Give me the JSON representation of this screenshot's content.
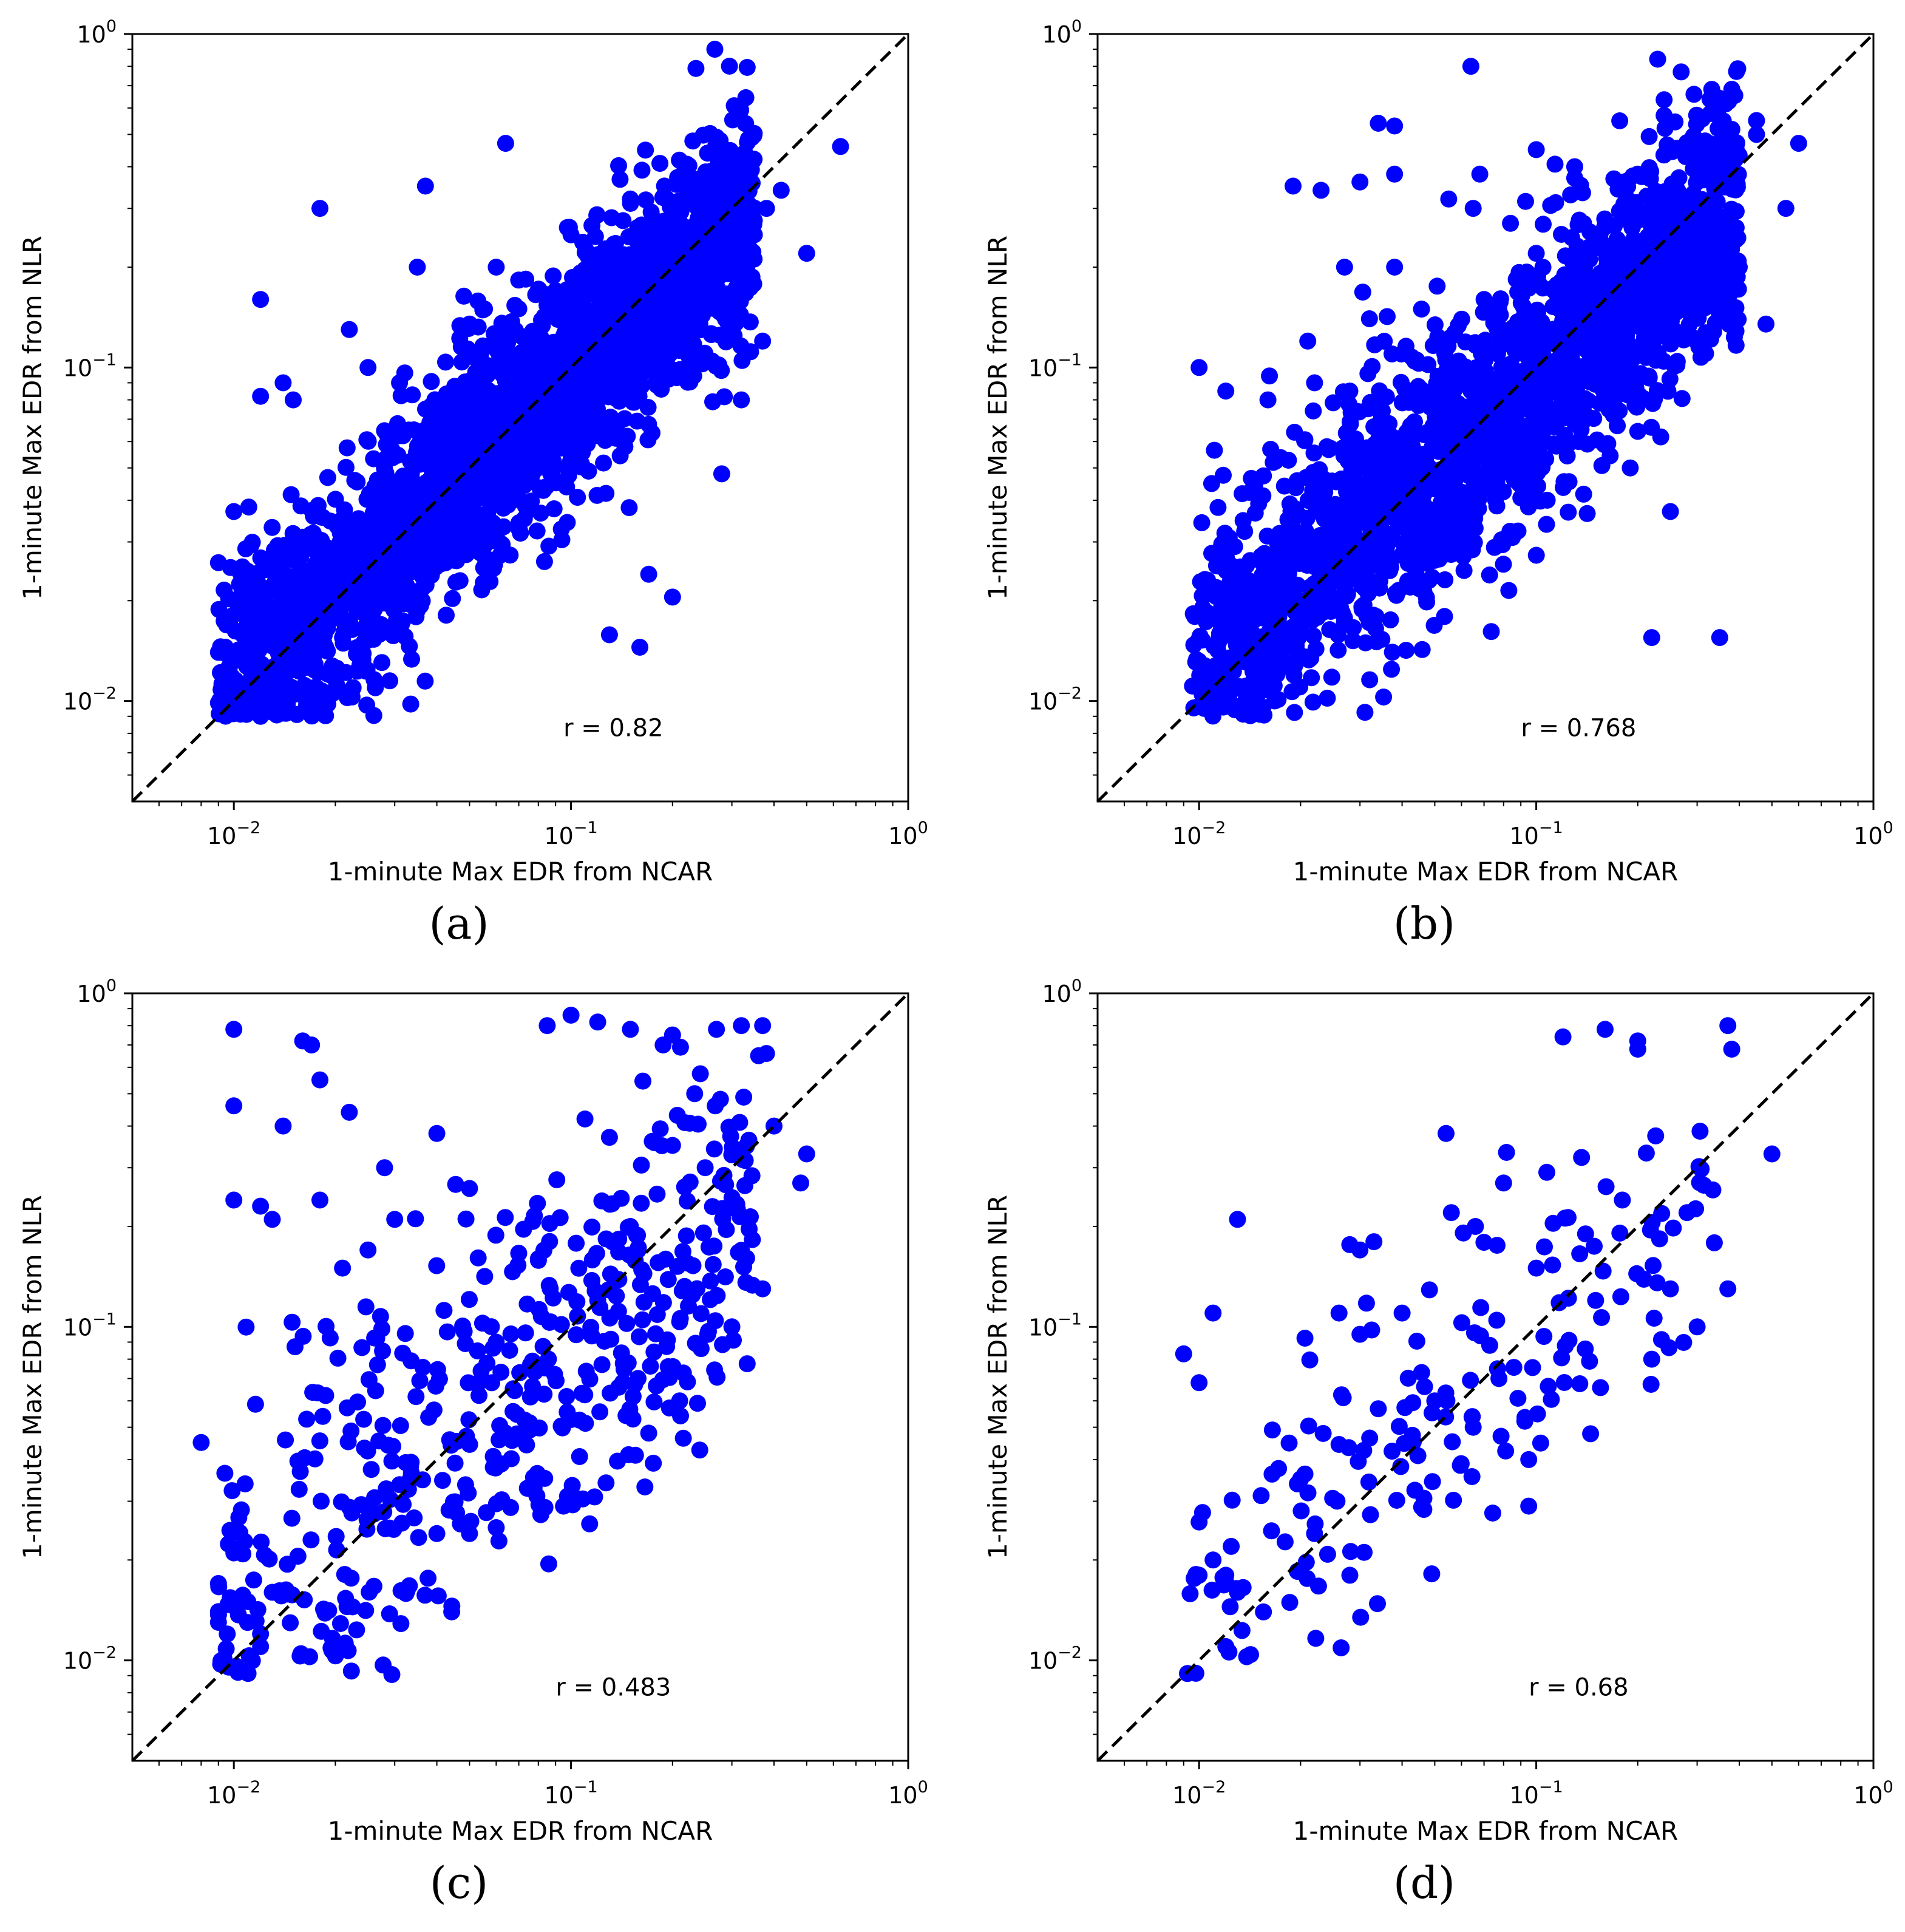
{
  "figure": {
    "colors": {
      "points": "#0000ff",
      "axes": "#000000",
      "diagonal": "#000000",
      "background": "#ffffff"
    }
  },
  "chart_data": [
    {
      "id": "a",
      "type": "scatter",
      "panel_label": "(a)",
      "xlabel": "1-minute Max EDR from NCAR",
      "ylabel": "1-minute Max EDR from NLR",
      "xscale": "log",
      "yscale": "log",
      "xlim": [
        0.005,
        1
      ],
      "ylim": [
        0.005,
        1
      ],
      "xticks": [
        {
          "value": 0.01,
          "base": "10",
          "exp": "−2"
        },
        {
          "value": 0.1,
          "base": "10",
          "exp": "−1"
        },
        {
          "value": 1,
          "base": "10",
          "exp": "0"
        }
      ],
      "yticks": [
        {
          "value": 0.01,
          "base": "10",
          "exp": "−2"
        },
        {
          "value": 0.1,
          "base": "10",
          "exp": "−1"
        },
        {
          "value": 1,
          "base": "10",
          "exp": "0"
        }
      ],
      "reference_line": "y = x (dashed)",
      "annotation": "r = 0.82",
      "cloud": {
        "n": 2600,
        "x_range": [
          0.009,
          0.35
        ],
        "scatter_sd": 0.17,
        "slope": 0.92
      },
      "points": [
        [
          0.064,
          0.47
        ],
        [
          0.63,
          0.46
        ],
        [
          0.018,
          0.3
        ],
        [
          0.037,
          0.35
        ],
        [
          0.012,
          0.16
        ],
        [
          0.035,
          0.2
        ],
        [
          0.06,
          0.2
        ],
        [
          0.5,
          0.22
        ],
        [
          0.42,
          0.34
        ],
        [
          0.38,
          0.3
        ],
        [
          0.3,
          0.42
        ],
        [
          0.22,
          0.32
        ],
        [
          0.014,
          0.09
        ],
        [
          0.012,
          0.082
        ],
        [
          0.015,
          0.08
        ],
        [
          0.01,
          0.037
        ],
        [
          0.009,
          0.026
        ],
        [
          0.009,
          0.014
        ],
        [
          0.011,
          0.011
        ],
        [
          0.012,
          0.009
        ],
        [
          0.014,
          0.0092
        ],
        [
          0.019,
          0.0098
        ],
        [
          0.021,
          0.0155
        ],
        [
          0.029,
          0.0115
        ],
        [
          0.13,
          0.0158
        ],
        [
          0.16,
          0.0145
        ],
        [
          0.2,
          0.0205
        ],
        [
          0.17,
          0.024
        ],
        [
          0.28,
          0.048
        ],
        [
          0.32,
          0.08
        ],
        [
          0.37,
          0.12
        ],
        [
          0.025,
          0.1
        ],
        [
          0.022,
          0.13
        ],
        [
          0.031,
          0.09
        ],
        [
          0.05,
          0.135
        ],
        [
          0.07,
          0.15
        ],
        [
          0.045,
          0.08
        ],
        [
          0.1,
          0.25
        ],
        [
          0.15,
          0.32
        ],
        [
          0.09,
          0.17
        ]
      ]
    },
    {
      "id": "b",
      "type": "scatter",
      "panel_label": "(b)",
      "xlabel": "1-minute Max EDR from NCAR",
      "ylabel": "1-minute Max EDR from NLR",
      "xscale": "log",
      "yscale": "log",
      "xlim": [
        0.005,
        1
      ],
      "ylim": [
        0.005,
        1
      ],
      "xticks": [
        {
          "value": 0.01,
          "base": "10",
          "exp": "−2"
        },
        {
          "value": 0.1,
          "base": "10",
          "exp": "−1"
        },
        {
          "value": 1,
          "base": "10",
          "exp": "0"
        }
      ],
      "yticks": [
        {
          "value": 0.01,
          "base": "10",
          "exp": "−2"
        },
        {
          "value": 0.1,
          "base": "10",
          "exp": "−1"
        },
        {
          "value": 1,
          "base": "10",
          "exp": "0"
        }
      ],
      "reference_line": "y = x (dashed)",
      "annotation": "r = 0.768",
      "cloud": {
        "n": 2200,
        "x_range": [
          0.0095,
          0.4
        ],
        "scatter_sd": 0.19,
        "slope": 0.85
      },
      "points": [
        [
          0.064,
          0.8
        ],
        [
          0.034,
          0.54
        ],
        [
          0.038,
          0.53
        ],
        [
          0.019,
          0.35
        ],
        [
          0.023,
          0.34
        ],
        [
          0.03,
          0.36
        ],
        [
          0.038,
          0.38
        ],
        [
          0.055,
          0.32
        ],
        [
          0.068,
          0.38
        ],
        [
          0.065,
          0.3
        ],
        [
          0.1,
          0.45
        ],
        [
          0.13,
          0.4
        ],
        [
          0.13,
          0.37
        ],
        [
          0.2,
          0.38
        ],
        [
          0.3,
          0.46
        ],
        [
          0.45,
          0.55
        ],
        [
          0.6,
          0.47
        ],
        [
          0.45,
          0.5
        ],
        [
          0.01,
          0.1
        ],
        [
          0.012,
          0.085
        ],
        [
          0.016,
          0.08
        ],
        [
          0.022,
          0.09
        ],
        [
          0.028,
          0.085
        ],
        [
          0.021,
          0.12
        ],
        [
          0.027,
          0.2
        ],
        [
          0.032,
          0.14
        ],
        [
          0.038,
          0.2
        ],
        [
          0.22,
          0.0155
        ],
        [
          0.35,
          0.0155
        ],
        [
          0.25,
          0.037
        ],
        [
          0.19,
          0.05
        ],
        [
          0.48,
          0.135
        ],
        [
          0.55,
          0.3
        ],
        [
          0.01,
          0.011
        ],
        [
          0.015,
          0.0098
        ],
        [
          0.024,
          0.0102
        ],
        [
          0.017,
          0.012
        ],
        [
          0.01,
          0.013
        ],
        [
          0.1,
          0.22
        ],
        [
          0.07,
          0.16
        ],
        [
          0.4,
          0.2
        ]
      ]
    },
    {
      "id": "c",
      "type": "scatter",
      "panel_label": "(c)",
      "xlabel": "1-minute Max EDR from NCAR",
      "ylabel": "1-minute Max EDR from NLR",
      "xscale": "log",
      "yscale": "log",
      "xlim": [
        0.005,
        1
      ],
      "ylim": [
        0.005,
        1
      ],
      "xticks": [
        {
          "value": 0.01,
          "base": "10",
          "exp": "−2"
        },
        {
          "value": 0.1,
          "base": "10",
          "exp": "−1"
        },
        {
          "value": 1,
          "base": "10",
          "exp": "0"
        }
      ],
      "yticks": [
        {
          "value": 0.01,
          "base": "10",
          "exp": "−2"
        },
        {
          "value": 0.1,
          "base": "10",
          "exp": "−1"
        },
        {
          "value": 1,
          "base": "10",
          "exp": "0"
        }
      ],
      "reference_line": "y = x (dashed)",
      "annotation": "r = 0.483",
      "cloud": {
        "n": 480,
        "x_range": [
          0.009,
          0.35
        ],
        "scatter_sd": 0.28,
        "slope": 0.7
      },
      "points": [
        [
          0.01,
          0.78
        ],
        [
          0.016,
          0.72
        ],
        [
          0.017,
          0.7
        ],
        [
          0.018,
          0.55
        ],
        [
          0.01,
          0.46
        ],
        [
          0.022,
          0.44
        ],
        [
          0.014,
          0.4
        ],
        [
          0.01,
          0.24
        ],
        [
          0.012,
          0.23
        ],
        [
          0.018,
          0.24
        ],
        [
          0.013,
          0.21
        ],
        [
          0.008,
          0.045
        ],
        [
          0.009,
          0.013
        ],
        [
          0.009,
          0.014
        ],
        [
          0.012,
          0.011
        ],
        [
          0.012,
          0.012
        ],
        [
          0.009,
          0.017
        ],
        [
          0.01,
          0.021
        ],
        [
          0.011,
          0.015
        ],
        [
          0.013,
          0.016
        ],
        [
          0.085,
          0.8
        ],
        [
          0.1,
          0.86
        ],
        [
          0.12,
          0.82
        ],
        [
          0.15,
          0.78
        ],
        [
          0.2,
          0.75
        ],
        [
          0.27,
          0.78
        ],
        [
          0.32,
          0.8
        ],
        [
          0.37,
          0.8
        ],
        [
          0.36,
          0.65
        ],
        [
          0.38,
          0.66
        ],
        [
          0.5,
          0.33
        ],
        [
          0.48,
          0.27
        ],
        [
          0.37,
          0.13
        ],
        [
          0.4,
          0.4
        ],
        [
          0.04,
          0.38
        ],
        [
          0.05,
          0.26
        ],
        [
          0.03,
          0.21
        ],
        [
          0.025,
          0.17
        ],
        [
          0.021,
          0.15
        ],
        [
          0.028,
          0.3
        ],
        [
          0.095,
          0.029
        ],
        [
          0.06,
          0.025
        ],
        [
          0.05,
          0.024
        ],
        [
          0.04,
          0.024
        ],
        [
          0.17,
          0.048
        ],
        [
          0.21,
          0.06
        ],
        [
          0.3,
          0.1
        ],
        [
          0.11,
          0.42
        ],
        [
          0.13,
          0.37
        ],
        [
          0.2,
          0.35
        ],
        [
          0.25,
          0.3
        ],
        [
          0.15,
          0.2
        ],
        [
          0.18,
          0.25
        ],
        [
          0.08,
          0.16
        ],
        [
          0.12,
          0.12
        ],
        [
          0.06,
          0.09
        ]
      ]
    },
    {
      "id": "d",
      "type": "scatter",
      "panel_label": "(d)",
      "xlabel": "1-minute Max EDR from NCAR",
      "ylabel": "1-minute Max EDR from NLR",
      "xscale": "log",
      "yscale": "log",
      "xlim": [
        0.005,
        1
      ],
      "ylim": [
        0.005,
        1
      ],
      "xticks": [
        {
          "value": 0.01,
          "base": "10",
          "exp": "−2"
        },
        {
          "value": 0.1,
          "base": "10",
          "exp": "−1"
        },
        {
          "value": 1,
          "base": "10",
          "exp": "0"
        }
      ],
      "yticks": [
        {
          "value": 0.01,
          "base": "10",
          "exp": "−2"
        },
        {
          "value": 0.1,
          "base": "10",
          "exp": "−1"
        },
        {
          "value": 1,
          "base": "10",
          "exp": "0"
        }
      ],
      "reference_line": "y = x (dashed)",
      "annotation": "r = 0.68",
      "cloud": {
        "n": 170,
        "x_range": [
          0.009,
          0.35
        ],
        "scatter_sd": 0.22,
        "slope": 0.8
      },
      "points": [
        [
          0.12,
          0.74
        ],
        [
          0.16,
          0.78
        ],
        [
          0.2,
          0.72
        ],
        [
          0.2,
          0.68
        ],
        [
          0.37,
          0.8
        ],
        [
          0.38,
          0.68
        ],
        [
          0.5,
          0.33
        ],
        [
          0.37,
          0.13
        ],
        [
          0.013,
          0.21
        ],
        [
          0.011,
          0.11
        ],
        [
          0.009,
          0.083
        ],
        [
          0.01,
          0.068
        ],
        [
          0.012,
          0.011
        ],
        [
          0.01,
          0.018
        ],
        [
          0.011,
          0.02
        ],
        [
          0.012,
          0.018
        ],
        [
          0.013,
          0.016
        ],
        [
          0.01,
          0.026
        ],
        [
          0.054,
          0.38
        ],
        [
          0.066,
          0.2
        ],
        [
          0.08,
          0.27
        ],
        [
          0.056,
          0.22
        ],
        [
          0.095,
          0.029
        ],
        [
          0.095,
          0.04
        ],
        [
          0.03,
          0.17
        ],
        [
          0.033,
          0.18
        ],
        [
          0.04,
          0.11
        ],
        [
          0.026,
          0.11
        ],
        [
          0.03,
          0.095
        ],
        [
          0.02,
          0.035
        ],
        [
          0.022,
          0.024
        ],
        [
          0.028,
          0.018
        ],
        [
          0.1,
          0.15
        ],
        [
          0.14,
          0.19
        ],
        [
          0.22,
          0.08
        ],
        [
          0.25,
          0.13
        ],
        [
          0.3,
          0.1
        ],
        [
          0.18,
          0.24
        ],
        [
          0.28,
          0.22
        ],
        [
          0.15,
          0.12
        ],
        [
          0.065,
          0.05
        ],
        [
          0.05,
          0.06
        ]
      ]
    }
  ]
}
